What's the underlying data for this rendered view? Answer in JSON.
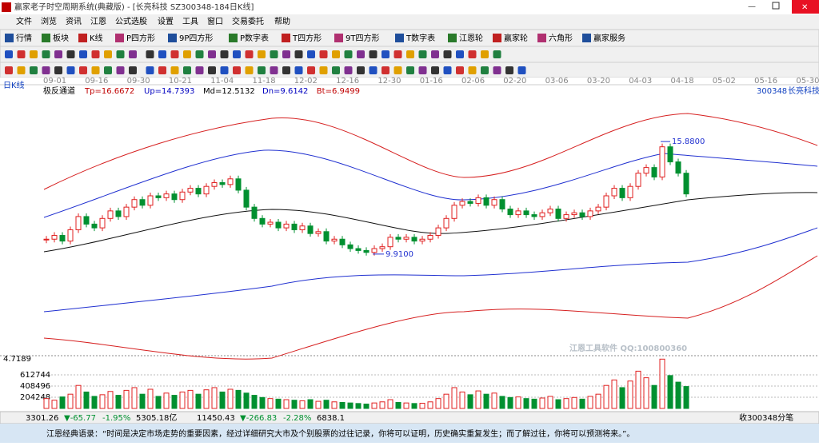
{
  "window": {
    "title": "赢家老子时空周期系统(典藏版) - [长亮科技 SZ300348-184日K线]"
  },
  "menu": [
    "文件",
    "浏览",
    "资讯",
    "江恩",
    "公式选股",
    "设置",
    "工具",
    "窗口",
    "交易委托",
    "帮助"
  ],
  "toolbar": [
    "行情",
    "板块",
    "K线",
    "P四方形",
    "9P四方形",
    "P数字表",
    "T四方形",
    "9T四方形",
    "T数字表",
    "江恩轮",
    "赢家轮",
    "六角形",
    "赢家服务"
  ],
  "chart_data": {
    "type": "candlestick",
    "period_label": "日K线",
    "dates": [
      "09-01",
      "09-16",
      "09-30",
      "10-21",
      "11-04",
      "11-18",
      "12-02",
      "12-16",
      "12-30",
      "01-16",
      "02-06",
      "02-20",
      "03-06",
      "03-20",
      "04-03",
      "04-18",
      "05-02",
      "05-16",
      "05-30"
    ],
    "indicator": {
      "name": "极反通道",
      "params": [
        "Tp=16.6672",
        "Up=14.7393",
        "Md=12.5132",
        "Dn=9.6142",
        "Bt=6.9499"
      ]
    },
    "stock": [
      "300348",
      "长亮科技"
    ],
    "ylim": [
      4.52,
      18.3
    ],
    "close": [
      10.7,
      10.9,
      10.6,
      11.2,
      11.9,
      11.5,
      11.3,
      11.8,
      12.2,
      11.9,
      12.4,
      12.8,
      12.5,
      13.0,
      12.9,
      13.1,
      12.8,
      13.2,
      13.4,
      13.1,
      13.5,
      13.7,
      13.6,
      13.9,
      13.3,
      12.4,
      11.8,
      11.5,
      11.6,
      11.3,
      11.5,
      11.2,
      11.4,
      11.0,
      11.1,
      10.6,
      10.7,
      10.4,
      10.2,
      10.1,
      10.0,
      10.2,
      10.3,
      10.8,
      10.7,
      10.8,
      10.6,
      10.7,
      10.9,
      11.3,
      11.8,
      12.5,
      12.7,
      12.6,
      12.9,
      12.5,
      12.8,
      12.3,
      12.0,
      12.2,
      12.0,
      11.9,
      12.1,
      12.3,
      11.8,
      12.0,
      12.1,
      11.9,
      12.2,
      12.4,
      13.0,
      13.4,
      12.9,
      13.5,
      14.2,
      14.5,
      14.0,
      15.6,
      14.8,
      14.2,
      13.1
    ],
    "annotations": [
      {
        "value": 15.88,
        "label": "15.8800"
      },
      {
        "value": 9.91,
        "label": "9.9100"
      }
    ],
    "volume_top_label": "4.7189",
    "vlim": [
      0,
      962900
    ],
    "vticks": [
      204248,
      408496,
      612744
    ],
    "volume": [
      180000,
      150000,
      210000,
      260000,
      420000,
      300000,
      220000,
      250000,
      310000,
      240000,
      330000,
      380000,
      260000,
      350000,
      220000,
      280000,
      240000,
      300000,
      330000,
      260000,
      340000,
      380000,
      300000,
      350000,
      330000,
      280000,
      240000,
      200000,
      180000,
      170000,
      160000,
      150000,
      140000,
      160000,
      130000,
      150000,
      120000,
      110000,
      100000,
      90000,
      80000,
      100000,
      120000,
      160000,
      110000,
      100000,
      90000,
      95000,
      120000,
      180000,
      260000,
      380000,
      300000,
      250000,
      320000,
      260000,
      280000,
      220000,
      200000,
      210000,
      180000,
      170000,
      190000,
      220000,
      160000,
      180000,
      200000,
      170000,
      220000,
      260000,
      420000,
      520000,
      380000,
      500000,
      680000,
      560000,
      420000,
      900000,
      600000,
      480000,
      400000
    ]
  },
  "watermark": "江恩工具软件 QQ:100800360",
  "status": [
    "3301.26",
    "▼-65.77",
    "-1.95%",
    "5305.18亿",
    "11450.43",
    "▼-266.83",
    "-2.28%",
    "6838.1",
    "收300348分笔"
  ],
  "quote": "江恩经典语录：“时间是决定市场走势的重要因素，经过详细研究大市及个别股票的过往记录，你将可以证明，历史确实重复发生；而了解过往，你将可以预测将来。”。"
}
